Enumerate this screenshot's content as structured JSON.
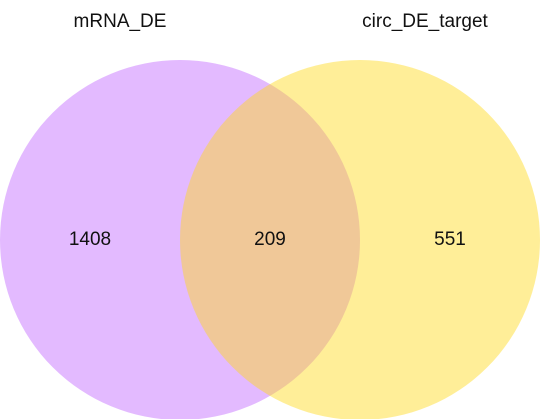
{
  "chart_data": {
    "type": "venn",
    "series": [
      {
        "name": "mRNA_DE",
        "color": "#c266ff"
      },
      {
        "name": "circ_DE_target",
        "color": "#ffd91a"
      }
    ],
    "values": [
      1408,
      209,
      551
    ]
  }
}
